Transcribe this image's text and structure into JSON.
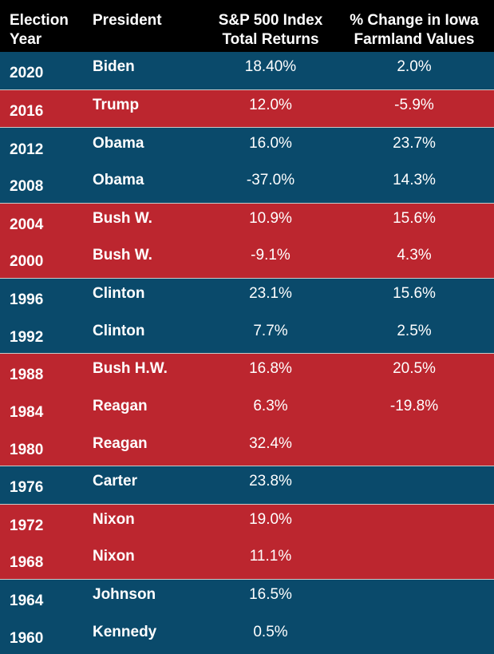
{
  "headers": {
    "year_line1": "Election",
    "year_line2": "Year",
    "president": "President",
    "sp_line1": "S&P 500 Index",
    "sp_line2": "Total Returns",
    "farm_line1": "% Change in Iowa",
    "farm_line2": "Farmland Values"
  },
  "colors": {
    "blue": "#0a4a6b",
    "red": "#bc262f",
    "header": "#000000"
  },
  "groups": [
    {
      "color": "blue",
      "rows": [
        {
          "year": "2020",
          "president": "Biden",
          "sp": "18.40%",
          "farm": "2.0%"
        }
      ]
    },
    {
      "color": "red",
      "rows": [
        {
          "year": "2016",
          "president": "Trump",
          "sp": "12.0%",
          "farm": "-5.9%"
        }
      ]
    },
    {
      "color": "blue",
      "rows": [
        {
          "year": "2012",
          "president": "Obama",
          "sp": "16.0%",
          "farm": "23.7%"
        },
        {
          "year": "2008",
          "president": "Obama",
          "sp": "-37.0%",
          "farm": "14.3%"
        }
      ]
    },
    {
      "color": "red",
      "rows": [
        {
          "year": "2004",
          "president": "Bush W.",
          "sp": "10.9%",
          "farm": "15.6%"
        },
        {
          "year": "2000",
          "president": "Bush W.",
          "sp": "-9.1%",
          "farm": "4.3%"
        }
      ]
    },
    {
      "color": "blue",
      "rows": [
        {
          "year": "1996",
          "president": "Clinton",
          "sp": "23.1%",
          "farm": "15.6%"
        },
        {
          "year": "1992",
          "president": "Clinton",
          "sp": "7.7%",
          "farm": "2.5%"
        }
      ]
    },
    {
      "color": "red",
      "rows": [
        {
          "year": "1988",
          "president": "Bush H.W.",
          "sp": "16.8%",
          "farm": "20.5%"
        },
        {
          "year": "1984",
          "president": "Reagan",
          "sp": "6.3%",
          "farm": "-19.8%"
        },
        {
          "year": "1980",
          "president": "Reagan",
          "sp": "32.4%",
          "farm": ""
        }
      ]
    },
    {
      "color": "blue",
      "rows": [
        {
          "year": "1976",
          "president": "Carter",
          "sp": "23.8%",
          "farm": ""
        }
      ]
    },
    {
      "color": "red",
      "rows": [
        {
          "year": "1972",
          "president": "Nixon",
          "sp": "19.0%",
          "farm": ""
        },
        {
          "year": "1968",
          "president": "Nixon",
          "sp": "11.1%",
          "farm": ""
        }
      ]
    },
    {
      "color": "blue",
      "rows": [
        {
          "year": "1964",
          "president": "Johnson",
          "sp": "16.5%",
          "farm": ""
        },
        {
          "year": "1960",
          "president": "Kennedy",
          "sp": "0.5%",
          "farm": ""
        }
      ]
    }
  ]
}
